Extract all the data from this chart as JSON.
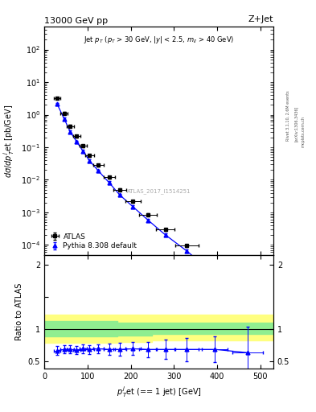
{
  "title": "13000 GeV pp",
  "title_right": "Z+Jet",
  "watermark": "ATLAS_2017_I1514251",
  "rivet_label": "Rivet 3.1.10, 2.6M events",
  "arxiv_label": "[arXiv:1306.3436]",
  "mcplots_label": "mcplots.cern.ch",
  "ylabel_ratio": "Ratio to ATLAS",
  "xlim": [
    0,
    530
  ],
  "ylim_main": [
    5e-05,
    500
  ],
  "ylim_ratio": [
    0.38,
    2.15
  ],
  "atlas_x": [
    30,
    46,
    60,
    75,
    90,
    105,
    125,
    150,
    175,
    205,
    240,
    280,
    330,
    395,
    470
  ],
  "atlas_y": [
    3.2,
    1.1,
    0.45,
    0.22,
    0.11,
    0.056,
    0.028,
    0.012,
    0.005,
    0.0022,
    0.00085,
    0.0003,
    9.5e-05,
    1.8e-05,
    3.5e-06
  ],
  "atlas_xerr": [
    8,
    8,
    8,
    8,
    8,
    10,
    12,
    13,
    15,
    18,
    20,
    22,
    27,
    30,
    35
  ],
  "atlas_yerr": [
    0.25,
    0.09,
    0.04,
    0.018,
    0.009,
    0.005,
    0.0024,
    0.001,
    0.0004,
    0.00018,
    7e-05,
    2.5e-05,
    8e-06,
    1.5e-06,
    4e-07
  ],
  "pythia_x": [
    30,
    46,
    60,
    75,
    90,
    105,
    125,
    150,
    175,
    205,
    240,
    280,
    330,
    395,
    470
  ],
  "pythia_y": [
    2.1,
    0.75,
    0.3,
    0.148,
    0.075,
    0.038,
    0.019,
    0.0082,
    0.0034,
    0.0015,
    0.00058,
    0.000205,
    6.5e-05,
    1.2e-05,
    2.2e-06
  ],
  "pythia_yerr": [
    0.2,
    0.07,
    0.028,
    0.013,
    0.007,
    0.0035,
    0.0017,
    0.00075,
    0.0003,
    0.00014,
    5.5e-05,
    2e-05,
    6e-06,
    1.2e-06,
    3e-07
  ],
  "ratio_x": [
    30,
    46,
    60,
    75,
    90,
    105,
    125,
    150,
    175,
    205,
    240,
    280,
    330,
    395,
    470
  ],
  "ratio_y": [
    0.66,
    0.68,
    0.68,
    0.67,
    0.69,
    0.68,
    0.69,
    0.68,
    0.68,
    0.69,
    0.68,
    0.68,
    0.68,
    0.68,
    0.63
  ],
  "ratio_xerr": [
    8,
    8,
    8,
    8,
    8,
    10,
    12,
    13,
    15,
    18,
    20,
    22,
    27,
    30,
    35
  ],
  "ratio_yerr": [
    0.07,
    0.06,
    0.06,
    0.06,
    0.07,
    0.07,
    0.07,
    0.09,
    0.1,
    0.1,
    0.12,
    0.15,
    0.18,
    0.2,
    0.4
  ],
  "band_green_x": [
    0,
    55,
    110,
    170,
    250,
    350,
    530
  ],
  "band_green_ylo": [
    0.88,
    0.88,
    0.88,
    0.9,
    0.92,
    0.92,
    0.92
  ],
  "band_green_yhi": [
    1.12,
    1.12,
    1.12,
    1.1,
    1.1,
    1.1,
    1.2
  ],
  "band_yellow_x": [
    0,
    55,
    110,
    170,
    250,
    350,
    530
  ],
  "band_yellow_ylo": [
    0.78,
    0.78,
    0.78,
    0.8,
    0.82,
    0.82,
    0.75
  ],
  "band_yellow_yhi": [
    1.22,
    1.22,
    1.22,
    1.22,
    1.22,
    1.22,
    1.55
  ],
  "color_atlas": "black",
  "color_pythia": "blue",
  "color_green": "#90ee90",
  "color_yellow": "#ffff80",
  "atlas_marker": "s",
  "pythia_marker": "^"
}
